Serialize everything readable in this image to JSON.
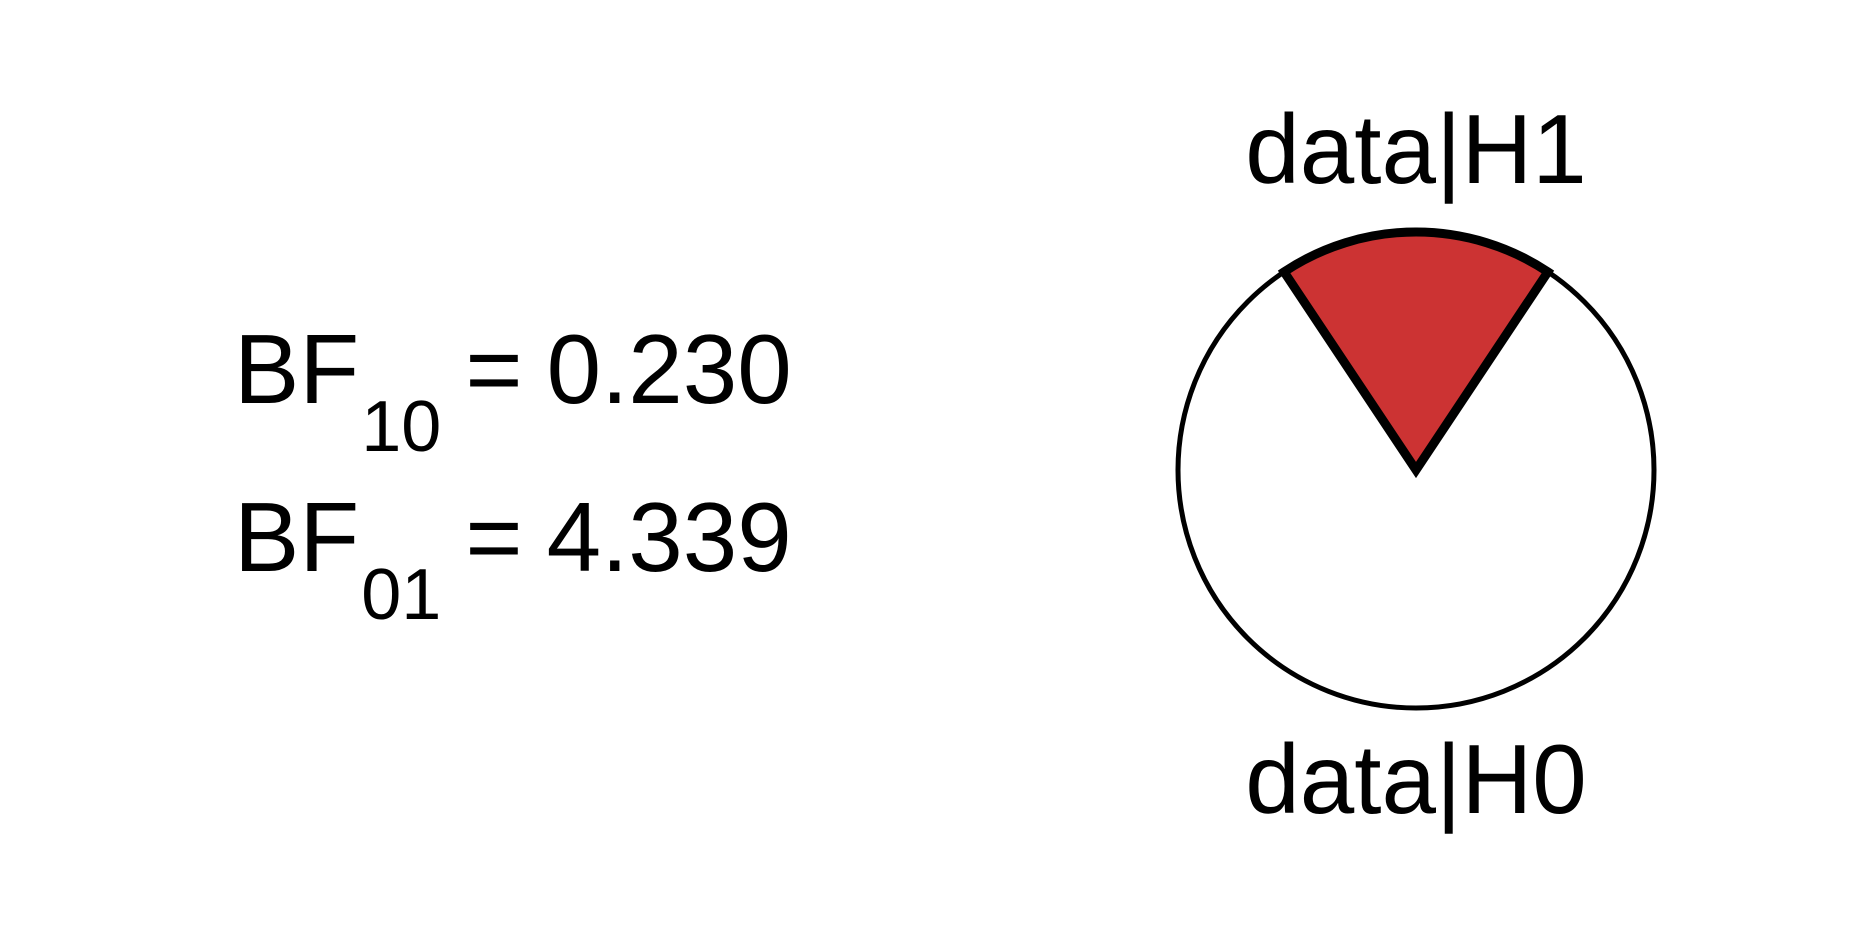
{
  "bayes_factors": {
    "bf10": {
      "label": "BF",
      "subscript": "10",
      "equals": "=",
      "value": "0.230"
    },
    "bf01": {
      "label": "BF",
      "subscript": "01",
      "equals": "=",
      "value": "4.339"
    }
  },
  "chart_data": {
    "type": "pie",
    "slices": [
      {
        "label": "data|H1",
        "value": 0.23,
        "color": "#cc3333"
      },
      {
        "label": "data|H0",
        "value": 1.0,
        "color": "#ffffff"
      }
    ],
    "labels": {
      "top": "data|H1",
      "bottom": "data|H0"
    },
    "outline_color": "#000000"
  }
}
